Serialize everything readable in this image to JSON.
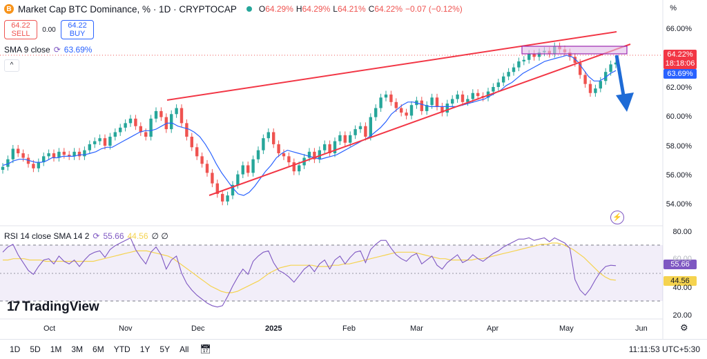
{
  "header": {
    "logo": "B",
    "title": "Market Cap BTC Dominance, % · 1D · CRYPTOCAP",
    "ohlc": [
      {
        "label": "O",
        "value": "64.29%"
      },
      {
        "label": "H",
        "value": "64.29%"
      },
      {
        "label": "L",
        "value": "64.21%"
      },
      {
        "label": "C",
        "value": "64.22%"
      },
      {
        "label": "",
        "value": "−0.07 (−0.12%)"
      }
    ]
  },
  "trade": {
    "sell_price": "64.22",
    "sell_label": "SELL",
    "spread": "0.00",
    "buy_price": "64.22",
    "buy_label": "BUY"
  },
  "indicators": {
    "sma_label": "SMA 9 close",
    "sma_value": "63.69%",
    "rsi_label": "RSI 14 close SMA 14 2",
    "rsi_value1": "55.66",
    "rsi_value2": "44.56",
    "rsi_value3": "∅ ∅"
  },
  "price_axis": {
    "unit_button": "%",
    "ticks": [
      "66.00%",
      "62.00%",
      "60.00%",
      "58.00%",
      "56.00%",
      "54.00%"
    ],
    "current_price": "64.22%",
    "countdown": "18:18:06",
    "sma_tag": "63.69%"
  },
  "rsi_axis": {
    "ticks": [
      "80.00",
      "60.00",
      "40.00",
      "20.00"
    ],
    "tag1": "55.66",
    "tag2": "44.56"
  },
  "time_axis": [
    "Oct",
    "Nov",
    "Dec",
    "2025",
    "Feb",
    "Mar",
    "Apr",
    "May",
    "Jun"
  ],
  "branding": "TradingView",
  "footer": {
    "ranges": [
      "1D",
      "5D",
      "1M",
      "3M",
      "6M",
      "YTD",
      "1Y",
      "5Y",
      "All"
    ],
    "clock": "11:11:53 UTC+5:30"
  },
  "colors": {
    "up": "#26a69a",
    "down": "#ef5350",
    "sma": "#2962ff",
    "rsi": "#7e57c2",
    "rsi_ma": "#f5d34f",
    "wedge": "#f23645",
    "arrow": "#1e6bd6"
  },
  "chart_data": {
    "type": "candlestick",
    "title": "Market Cap BTC Dominance, %",
    "ylim": [
      53.8,
      67.0
    ],
    "x_labels": [
      "Oct",
      "Nov",
      "Dec",
      "2025",
      "Feb",
      "Mar",
      "Apr",
      "May",
      "Jun"
    ],
    "y_ticks": [
      54,
      56,
      58,
      60,
      62,
      66
    ],
    "close_series": [
      57.3,
      57.8,
      58.5,
      58.2,
      57.9,
      57.5,
      57.2,
      57.6,
      58.0,
      58.2,
      57.9,
      58.3,
      58.1,
      58.0,
      58.3,
      58.0,
      58.4,
      58.8,
      59.0,
      59.2,
      58.7,
      59.3,
      59.6,
      59.9,
      60.2,
      60.5,
      60.0,
      59.6,
      59.3,
      60.5,
      61.0,
      60.6,
      59.8,
      60.8,
      61.2,
      60.2,
      59.3,
      58.6,
      58.0,
      57.5,
      56.9,
      56.2,
      55.5,
      55.0,
      55.4,
      56.1,
      56.8,
      57.4,
      56.9,
      57.8,
      58.4,
      59.2,
      59.6,
      58.8,
      58.2,
      58.0,
      57.6,
      57.0,
      57.4,
      57.9,
      58.3,
      57.8,
      58.4,
      58.8,
      58.2,
      59.0,
      59.4,
      58.9,
      59.4,
      59.8,
      60.0,
      59.3,
      60.6,
      61.2,
      61.9,
      62.1,
      61.6,
      61.2,
      60.9,
      60.7,
      61.4,
      61.7,
      61.0,
      61.4,
      61.9,
      61.3,
      60.9,
      61.5,
      61.8,
      62.1,
      61.6,
      61.8,
      62.2,
      62.0,
      61.9,
      62.3,
      62.6,
      62.9,
      63.3,
      63.6,
      63.9,
      64.3,
      64.4,
      64.8,
      64.6,
      64.9,
      65.0,
      64.8,
      65.3,
      65.1,
      64.9,
      64.6,
      64.2,
      63.4,
      62.8,
      62.2,
      62.5,
      63.0,
      63.6,
      64.1,
      64.22
    ],
    "sma9_series": [
      57.4,
      57.5,
      57.7,
      57.8,
      57.8,
      57.7,
      57.6,
      57.6,
      57.7,
      57.9,
      57.9,
      58.0,
      58.0,
      58.0,
      58.1,
      58.1,
      58.2,
      58.3,
      58.5,
      58.6,
      58.6,
      58.8,
      59.0,
      59.2,
      59.4,
      59.6,
      59.7,
      59.7,
      59.8,
      60.0,
      60.2,
      60.2,
      60.0,
      59.9,
      59.8,
      59.6,
      59.3,
      58.8,
      58.2,
      57.5,
      56.9,
      56.4,
      55.9,
      55.5,
      55.4,
      55.6,
      56.0,
      56.5,
      57.0,
      57.4,
      57.9,
      58.2,
      58.4,
      58.3,
      58.2,
      58.1,
      58.0,
      57.9,
      57.8,
      57.9,
      58.0,
      58.1,
      58.3,
      58.5,
      58.7,
      58.9,
      59.1,
      59.3,
      59.6,
      59.9,
      60.3,
      60.8,
      61.1,
      61.4,
      61.6,
      61.6,
      61.5,
      61.4,
      61.3,
      61.3,
      61.3,
      61.3,
      61.3,
      61.3,
      61.4,
      61.5,
      61.6,
      61.7,
      61.8,
      62.0,
      62.2,
      62.4,
      62.7,
      62.9,
      63.2,
      63.5,
      63.7,
      63.9,
      64.1,
      64.3,
      64.4,
      64.5,
      64.6,
      64.7,
      64.6,
      64.3,
      63.8,
      63.3,
      63.0,
      63.0,
      63.2,
      63.5,
      63.69
    ],
    "rsi_series": [
      66,
      70,
      72,
      64,
      58,
      52,
      49,
      55,
      60,
      61,
      57,
      63,
      59,
      57,
      60,
      55,
      60,
      64,
      66,
      67,
      62,
      68,
      71,
      73,
      75,
      77,
      68,
      62,
      57,
      66,
      70,
      64,
      53,
      60,
      63,
      50,
      42,
      37,
      33,
      30,
      27,
      25,
      24,
      25,
      32,
      40,
      47,
      53,
      49,
      59,
      63,
      66,
      67,
      58,
      52,
      50,
      47,
      43,
      48,
      53,
      56,
      51,
      57,
      60,
      53,
      60,
      63,
      57,
      62,
      66,
      67,
      58,
      68,
      72,
      75,
      75,
      69,
      64,
      61,
      59,
      63,
      65,
      57,
      60,
      63,
      56,
      53,
      58,
      61,
      64,
      58,
      60,
      64,
      61,
      59,
      62,
      65,
      67,
      70,
      72,
      74,
      76,
      76,
      77,
      75,
      76,
      77,
      74,
      77,
      75,
      73,
      69,
      45,
      37,
      33,
      38,
      45,
      51,
      55,
      56,
      55.66
    ],
    "rsi_ma_series": [
      60,
      60,
      61,
      61,
      61,
      60,
      60,
      60,
      59,
      59,
      59,
      59,
      59,
      59,
      59,
      59,
      59,
      59,
      60,
      61,
      62,
      63,
      64,
      65,
      66,
      67,
      67,
      67,
      66,
      65,
      64,
      63,
      61,
      58,
      55,
      52,
      49,
      46,
      43,
      40,
      38,
      36,
      35,
      35,
      36,
      38,
      40,
      42,
      44,
      47,
      50,
      52,
      54,
      55,
      56,
      56,
      56,
      56,
      56,
      55,
      55,
      55,
      56,
      56,
      57,
      57,
      58,
      59,
      60,
      61,
      62,
      63,
      64,
      65,
      66,
      66,
      66,
      66,
      65,
      64,
      63,
      62,
      61,
      61,
      60,
      60,
      60,
      60,
      60,
      61,
      61,
      62,
      63,
      64,
      65,
      66,
      67,
      68,
      69,
      70,
      71,
      72,
      72,
      73,
      73,
      72,
      70,
      68,
      65,
      62,
      58,
      54,
      50,
      47,
      45,
      44.56
    ],
    "rsi_ylim": [
      18,
      82
    ]
  }
}
